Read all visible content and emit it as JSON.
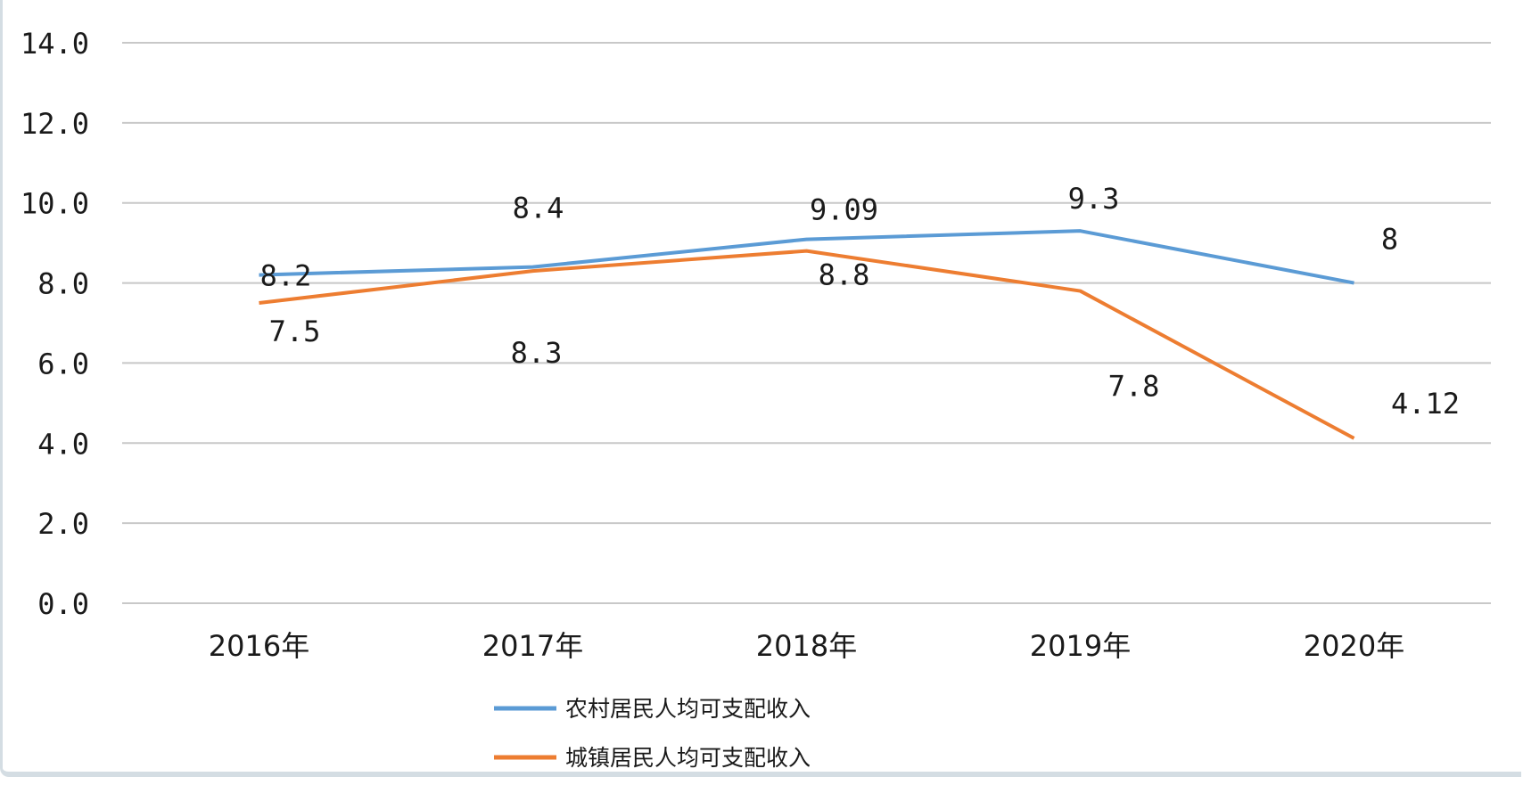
{
  "chart_data": {
    "type": "line",
    "categories": [
      "2016年",
      "2017年",
      "2018年",
      "2019年",
      "2020年"
    ],
    "ylim": [
      0,
      14
    ],
    "yticks": [
      0,
      2,
      4,
      6,
      8,
      10,
      12,
      14
    ],
    "ytick_labels": [
      "0.0",
      "2.0",
      "4.0",
      "6.0",
      "8.0",
      "10.0",
      "12.0",
      "14.0"
    ],
    "grid": true,
    "legend_position": "bottom",
    "series": [
      {
        "name": "农村居民人均可支配收入",
        "color": "#5b9bd5",
        "values": [
          8.2,
          8.4,
          9.09,
          9.3,
          8
        ],
        "labels": [
          "8.2",
          "8.4",
          "9.09",
          "9.3",
          "8"
        ]
      },
      {
        "name": "城镇居民人均可支配收入",
        "color": "#ed7d31",
        "values": [
          7.5,
          8.3,
          8.8,
          7.8,
          4.12
        ],
        "labels": [
          "7.5",
          "8.3",
          "8.8",
          "7.8",
          "4.12"
        ]
      }
    ]
  }
}
